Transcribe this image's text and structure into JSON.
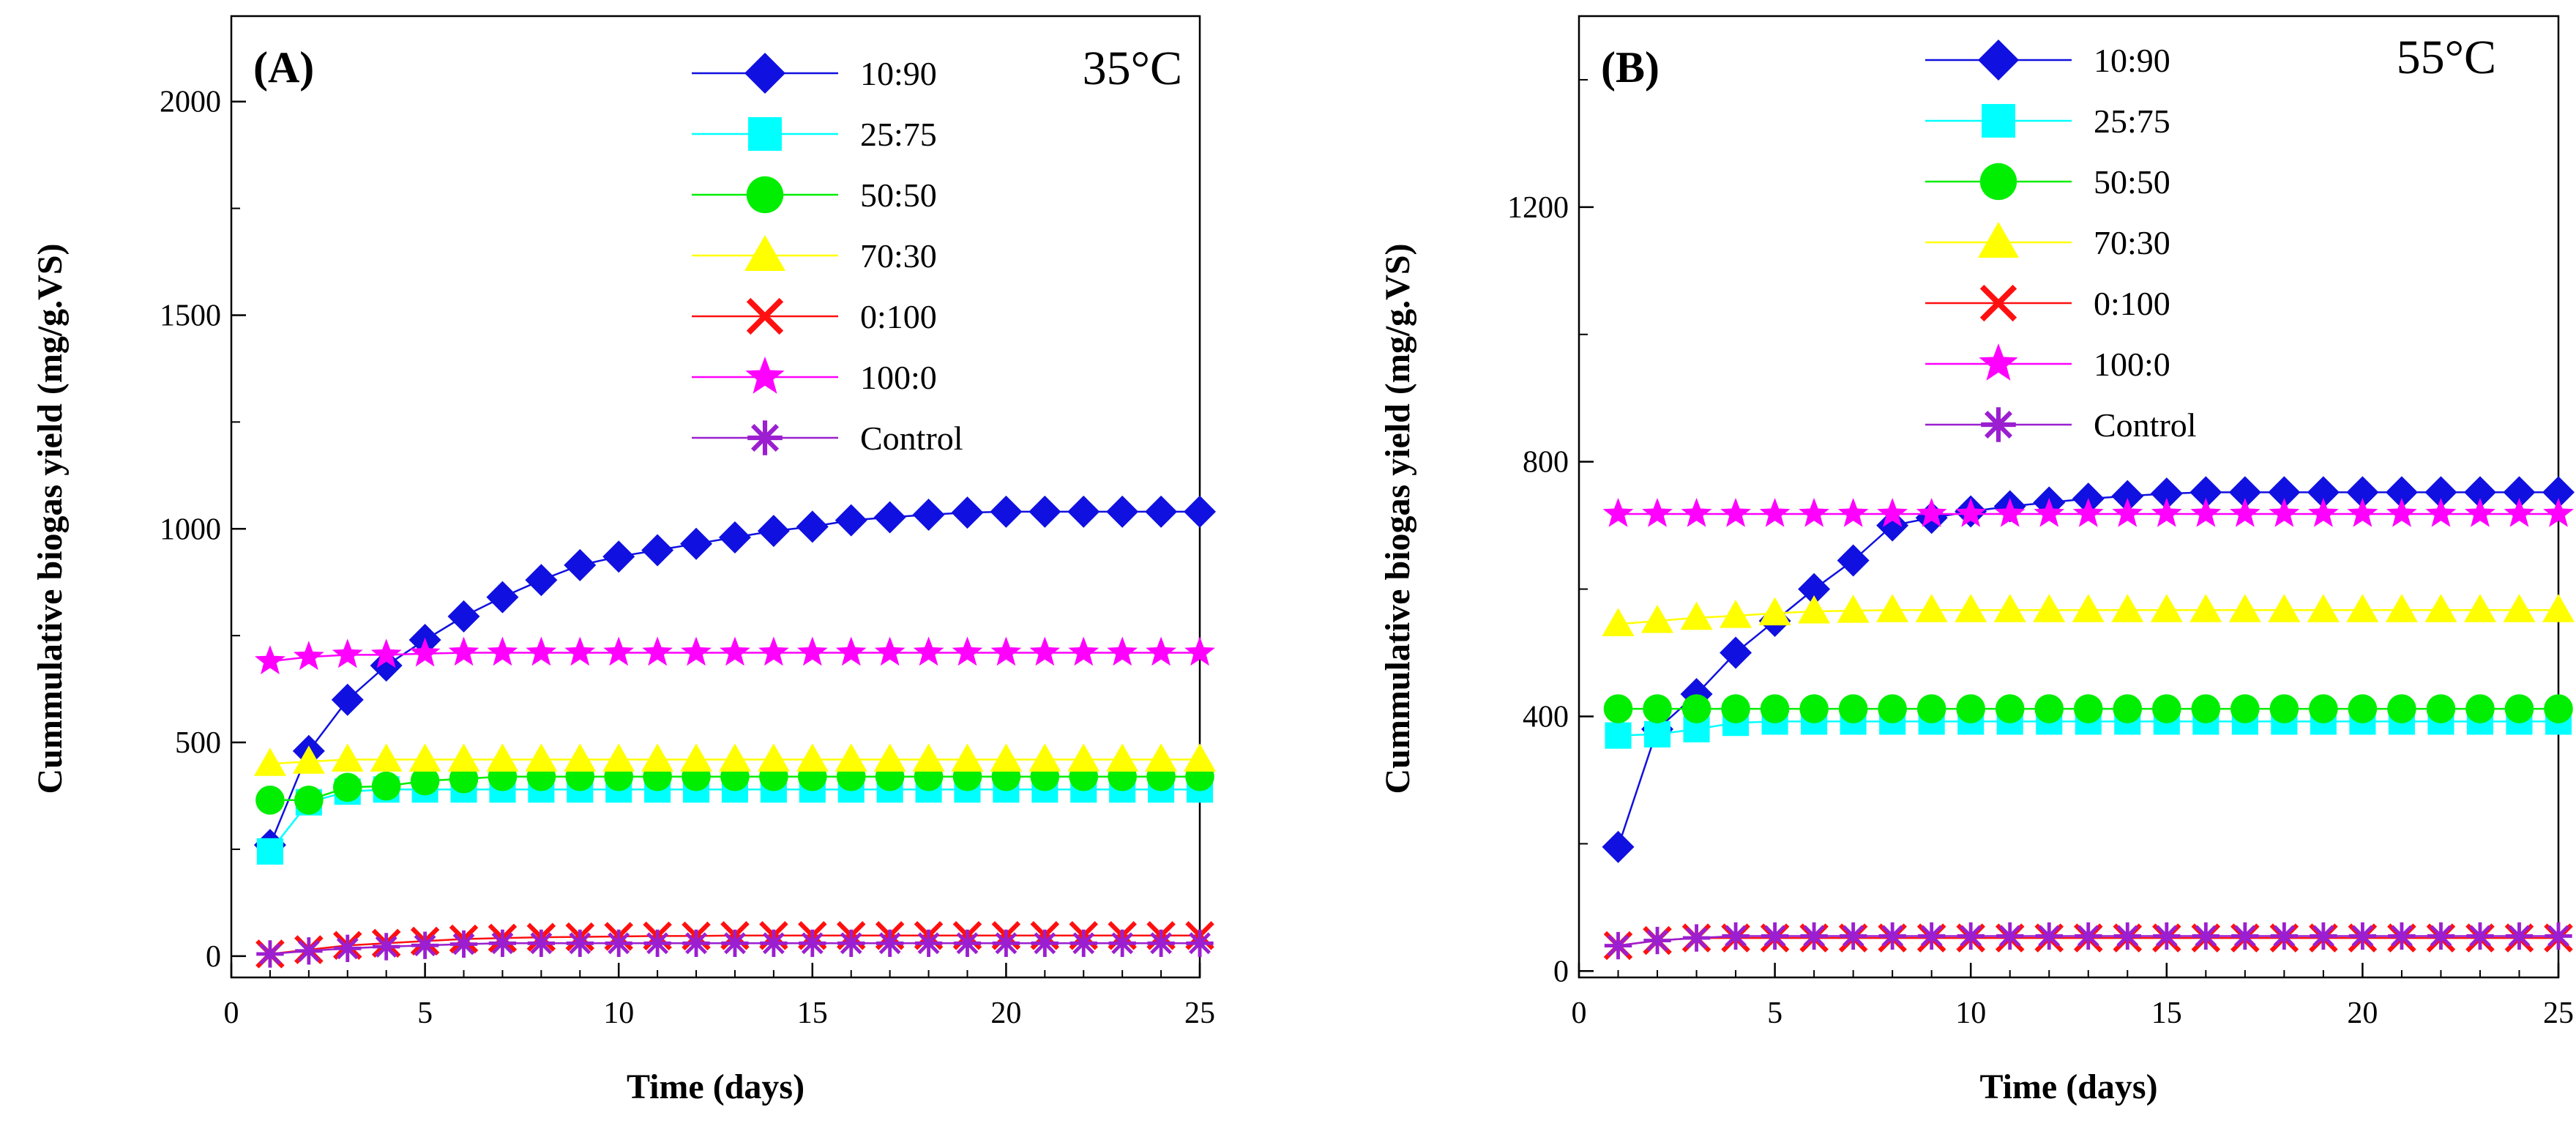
{
  "chart_data": [
    {
      "type": "line",
      "panel_label": "(A)",
      "temperature": "35°C",
      "xlabel": "Time (days)",
      "ylabel": "Cummulative biogas yield (mg/g.VS)",
      "xlim": [
        0,
        25
      ],
      "ylim": [
        -50,
        2200
      ],
      "x_ticks": [
        0,
        5,
        10,
        15,
        20,
        25
      ],
      "x_tick_labels": [
        "0",
        "5",
        "10",
        "15",
        "20",
        "25"
      ],
      "y_ticks": [
        0,
        500,
        1000,
        1500,
        2000
      ],
      "y_tick_labels": [
        "0",
        "500",
        "1000",
        "1500",
        "2000"
      ],
      "y_minor_ticks": [
        250,
        750,
        1250,
        1750
      ],
      "x": [
        1,
        2,
        3,
        4,
        5,
        6,
        7,
        8,
        9,
        10,
        11,
        12,
        13,
        14,
        15,
        16,
        17,
        18,
        19,
        20,
        21,
        22,
        23,
        24,
        25
      ],
      "series": [
        {
          "name": "10:90",
          "color": "#1010e0",
          "marker": "diamond",
          "values": [
            260,
            480,
            600,
            680,
            740,
            795,
            840,
            880,
            915,
            935,
            950,
            965,
            980,
            995,
            1005,
            1020,
            1027,
            1033,
            1038,
            1040,
            1040,
            1040,
            1040,
            1040,
            1040
          ]
        },
        {
          "name": "25:75",
          "color": "#00ffff",
          "marker": "square",
          "values": [
            245,
            360,
            385,
            390,
            390,
            390,
            390,
            390,
            390,
            390,
            390,
            390,
            390,
            390,
            390,
            390,
            390,
            390,
            390,
            390,
            390,
            390,
            390,
            390,
            390
          ]
        },
        {
          "name": "50:50",
          "color": "#00ee00",
          "marker": "circle",
          "values": [
            365,
            365,
            395,
            398,
            410,
            415,
            420,
            420,
            420,
            420,
            420,
            420,
            420,
            420,
            420,
            420,
            420,
            420,
            420,
            420,
            420,
            420,
            420,
            420,
            420
          ]
        },
        {
          "name": "70:30",
          "color": "#ffff00",
          "marker": "triangle",
          "values": [
            450,
            455,
            460,
            460,
            460,
            460,
            460,
            460,
            460,
            460,
            460,
            460,
            460,
            460,
            460,
            460,
            460,
            460,
            460,
            460,
            460,
            460,
            460,
            460,
            460
          ]
        },
        {
          "name": "0:100",
          "color": "#ff1010",
          "marker": "x",
          "values": [
            5,
            15,
            25,
            30,
            35,
            40,
            42,
            44,
            45,
            46,
            47,
            47,
            48,
            48,
            48,
            48,
            48,
            48,
            48,
            48,
            48,
            48,
            48,
            48,
            48
          ]
        },
        {
          "name": "100:0",
          "color": "#ff00ff",
          "marker": "star",
          "values": [
            690,
            700,
            705,
            705,
            708,
            710,
            710,
            710,
            710,
            710,
            710,
            710,
            710,
            710,
            710,
            710,
            710,
            710,
            710,
            710,
            710,
            710,
            710,
            710,
            710
          ]
        },
        {
          "name": "Control",
          "color": "#9b1fd0",
          "marker": "asterisk",
          "values": [
            5,
            12,
            18,
            22,
            25,
            28,
            30,
            30,
            30,
            30,
            30,
            30,
            30,
            30,
            30,
            30,
            30,
            30,
            30,
            30,
            30,
            30,
            30,
            30,
            30
          ]
        }
      ]
    },
    {
      "type": "line",
      "panel_label": "(B)",
      "temperature": "55°C",
      "xlabel": "Time (days)",
      "ylabel": "Cummulative biogas yield (mg/g.VS)",
      "xlim": [
        0,
        25
      ],
      "ylim": [
        -10,
        1500
      ],
      "x_ticks": [
        0,
        5,
        10,
        15,
        20,
        25
      ],
      "x_tick_labels": [
        "0",
        "5",
        "10",
        "15",
        "20",
        "25"
      ],
      "y_ticks": [
        0,
        400,
        800,
        1200
      ],
      "y_tick_labels": [
        "0",
        "400",
        "800",
        "1200"
      ],
      "y_minor_ticks": [
        200,
        600,
        1000,
        1400
      ],
      "x": [
        1,
        2,
        3,
        4,
        5,
        6,
        7,
        8,
        9,
        10,
        11,
        12,
        13,
        14,
        15,
        16,
        17,
        18,
        19,
        20,
        21,
        22,
        23,
        24,
        25
      ],
      "series": [
        {
          "name": "10:90",
          "color": "#1010e0",
          "marker": "diamond",
          "values": [
            195,
            380,
            435,
            500,
            550,
            600,
            645,
            700,
            712,
            722,
            730,
            736,
            742,
            746,
            750,
            752,
            752,
            752,
            752,
            752,
            752,
            752,
            752,
            752,
            752
          ]
        },
        {
          "name": "25:75",
          "color": "#00ffff",
          "marker": "square",
          "values": [
            370,
            372,
            380,
            390,
            392,
            392,
            392,
            392,
            392,
            392,
            392,
            392,
            392,
            392,
            392,
            392,
            392,
            392,
            392,
            392,
            392,
            392,
            392,
            392,
            392
          ]
        },
        {
          "name": "50:50",
          "color": "#00ee00",
          "marker": "circle",
          "values": [
            412,
            412,
            412,
            412,
            412,
            412,
            412,
            412,
            412,
            412,
            412,
            412,
            412,
            412,
            412,
            412,
            412,
            412,
            412,
            412,
            412,
            412,
            412,
            412,
            412
          ]
        },
        {
          "name": "70:30",
          "color": "#ffff00",
          "marker": "triangle",
          "values": [
            545,
            550,
            555,
            558,
            562,
            565,
            566,
            567,
            567,
            567,
            567,
            567,
            567,
            567,
            567,
            567,
            567,
            567,
            567,
            567,
            567,
            567,
            567,
            567,
            567
          ]
        },
        {
          "name": "0:100",
          "color": "#ff1010",
          "marker": "x",
          "values": [
            40,
            48,
            52,
            52,
            52,
            52,
            52,
            52,
            52,
            52,
            52,
            52,
            52,
            52,
            52,
            52,
            52,
            52,
            52,
            52,
            52,
            52,
            52,
            52,
            52
          ]
        },
        {
          "name": "100:0",
          "color": "#ff00ff",
          "marker": "star",
          "values": [
            718,
            718,
            718,
            718,
            718,
            718,
            718,
            718,
            718,
            718,
            718,
            718,
            718,
            718,
            718,
            718,
            718,
            718,
            718,
            718,
            718,
            718,
            718,
            718,
            718
          ]
        },
        {
          "name": "Control",
          "color": "#9b1fd0",
          "marker": "asterisk",
          "values": [
            40,
            48,
            52,
            55,
            55,
            55,
            55,
            55,
            55,
            55,
            55,
            55,
            55,
            55,
            55,
            55,
            55,
            55,
            55,
            55,
            55,
            55,
            55,
            55,
            55
          ]
        }
      ]
    }
  ]
}
